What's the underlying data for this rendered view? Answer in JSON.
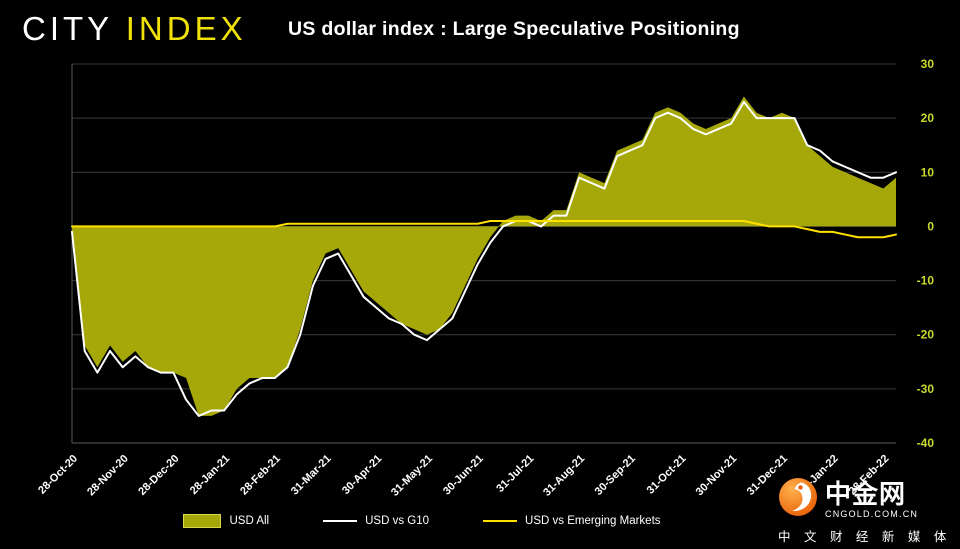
{
  "header": {
    "brand_part1": "CITY",
    "brand_part2": "INDEX",
    "title": "US dollar index : Large Speculative Positioning"
  },
  "chart_data": {
    "type": "area",
    "title": "US dollar index : Large Speculative Positioning",
    "ylim": [
      -40,
      30
    ],
    "yticks": [
      30,
      20,
      10,
      0,
      -10,
      -20,
      -30,
      -40
    ],
    "x_tick_labels": [
      "28-Oct-20",
      "28-Nov-20",
      "28-Dec-20",
      "28-Jan-21",
      "28-Feb-21",
      "31-Mar-21",
      "30-Apr-21",
      "31-May-21",
      "30-Jun-21",
      "31-Jul-21",
      "31-Aug-21",
      "30-Sep-21",
      "31-Oct-21",
      "30-Nov-21",
      "31-Dec-21",
      "31-Jan-22",
      "28-Feb-22"
    ],
    "x_ticks_every_n_points": 4,
    "grid": "horizontal",
    "legend_position": "bottom",
    "series": [
      {
        "name": "USD All",
        "kind": "area",
        "color": "#a6a80a",
        "baseline": 0,
        "values": [
          -1,
          -22,
          -26,
          -22,
          -25,
          -23,
          -26,
          -27,
          -27,
          -28,
          -35,
          -35,
          -34,
          -30,
          -28,
          -28,
          -28,
          -26,
          -19,
          -10,
          -5,
          -4,
          -8,
          -12,
          -14,
          -16,
          -18,
          -19,
          -20,
          -19,
          -16,
          -11,
          -6,
          -2,
          1,
          2,
          2,
          1,
          3,
          3,
          10,
          9,
          8,
          14,
          15,
          16,
          21,
          22,
          21,
          19,
          18,
          19,
          20,
          24,
          21,
          20,
          21,
          20,
          15,
          13,
          11,
          10,
          9,
          8,
          7,
          9
        ]
      },
      {
        "name": "USD vs G10",
        "kind": "line",
        "color": "#ffffff",
        "values": [
          -1,
          -23,
          -27,
          -23,
          -26,
          -24,
          -26,
          -27,
          -27,
          -32,
          -35,
          -34,
          -34,
          -31,
          -29,
          -28,
          -28,
          -26,
          -20,
          -11,
          -6,
          -5,
          -9,
          -13,
          -15,
          -17,
          -18,
          -20,
          -21,
          -19,
          -17,
          -12,
          -7,
          -3,
          0,
          1,
          1,
          0,
          2,
          2,
          9,
          8,
          7,
          13,
          14,
          15,
          20,
          21,
          20,
          18,
          17,
          18,
          19,
          23,
          20,
          20,
          20,
          20,
          15,
          14,
          12,
          11,
          10,
          9,
          9,
          10
        ]
      },
      {
        "name": "USD vs Emerging Markets",
        "kind": "line",
        "color": "#ffe100",
        "values": [
          0,
          0,
          0,
          0,
          0,
          0,
          0,
          0,
          0,
          0,
          0,
          0,
          0,
          0,
          0,
          0,
          0,
          0.5,
          0.5,
          0.5,
          0.5,
          0.5,
          0.5,
          0.5,
          0.5,
          0.5,
          0.5,
          0.5,
          0.5,
          0.5,
          0.5,
          0.5,
          0.5,
          1,
          1,
          1,
          1,
          1,
          1,
          1,
          1,
          1,
          1,
          1,
          1,
          1,
          1,
          1,
          1,
          1,
          1,
          1,
          1,
          1,
          0.5,
          0,
          0,
          0,
          -0.5,
          -1,
          -1,
          -1.5,
          -2,
          -2,
          -2,
          -1.5
        ]
      }
    ]
  },
  "legend": {
    "items": [
      {
        "label": "USD All",
        "swatch": "area",
        "color": "#a6a80a"
      },
      {
        "label": "USD vs G10",
        "swatch": "line",
        "color": "#ffffff"
      },
      {
        "label": "USD vs Emerging Markets",
        "swatch": "line",
        "color": "#ffe100"
      }
    ]
  },
  "watermark": {
    "name": "中金网",
    "domain": "CNGOLD.COM.CN",
    "tagline": "中 文 财 经 新 媒 体"
  },
  "colors": {
    "background": "#000000",
    "grid": "#3a3a3a",
    "axis_line": "#5a5a5a",
    "y_tick_labels": "#c9d92e",
    "x_tick_labels": "#ffffff",
    "area_fill": "#a6a80a",
    "brand_yellow": "#f0e10b"
  }
}
